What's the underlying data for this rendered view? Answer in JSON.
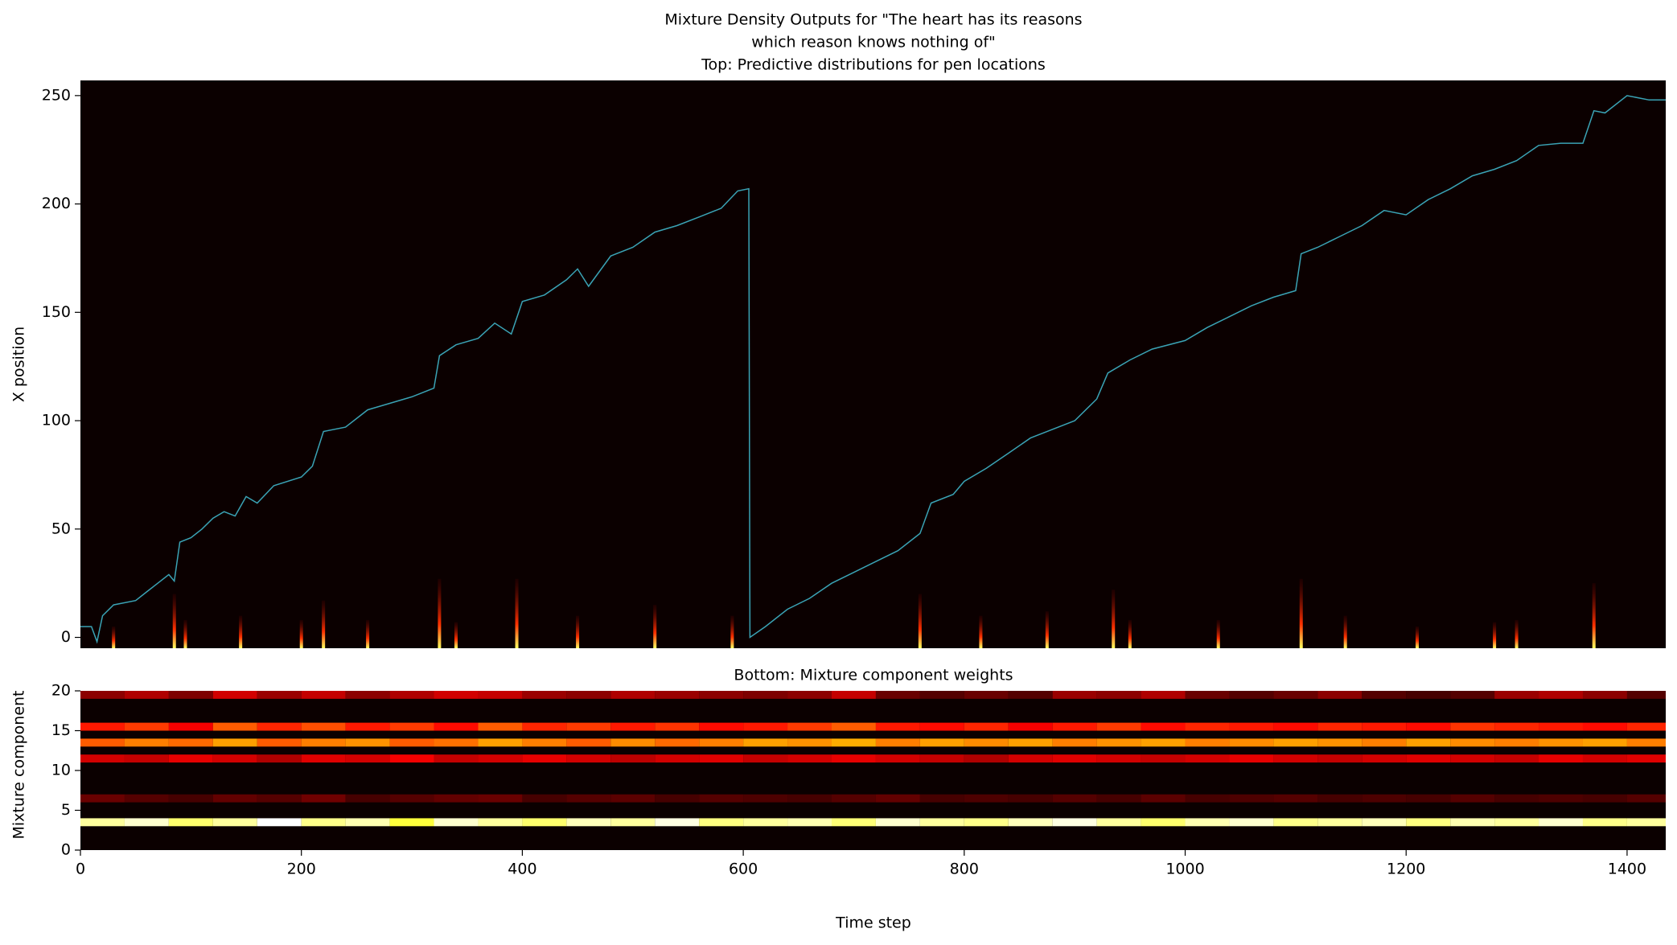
{
  "chart_data": [
    {
      "type": "heatmap",
      "title": [
        "Mixture Density Outputs for \"The heart has its reasons",
        "which reason knows nothing of\"",
        "Top: Predictive distributions for pen locations"
      ],
      "y_label": "X position",
      "xlim": [
        0,
        1435
      ],
      "ylim": [
        -5,
        257
      ],
      "yticks": [
        0,
        50,
        100,
        150,
        200,
        250
      ],
      "colormap": "hot",
      "line": {
        "color": "#3aa3b5",
        "x": [
          0,
          10,
          15,
          20,
          30,
          50,
          60,
          70,
          80,
          85,
          90,
          100,
          110,
          120,
          130,
          140,
          150,
          160,
          175,
          200,
          210,
          220,
          240,
          260,
          280,
          300,
          320,
          325,
          340,
          360,
          375,
          390,
          400,
          420,
          440,
          450,
          460,
          480,
          500,
          520,
          540,
          560,
          580,
          595,
          605,
          606,
          620,
          640,
          660,
          680,
          700,
          720,
          740,
          760,
          770,
          790,
          800,
          820,
          840,
          860,
          880,
          900,
          920,
          930,
          950,
          970,
          1000,
          1020,
          1040,
          1060,
          1080,
          1100,
          1105,
          1120,
          1140,
          1160,
          1180,
          1200,
          1220,
          1240,
          1260,
          1280,
          1300,
          1320,
          1340,
          1360,
          1370,
          1380,
          1400,
          1420,
          1435
        ],
        "values": [
          5,
          5,
          -2,
          10,
          15,
          17,
          21,
          25,
          29,
          26,
          44,
          46,
          50,
          55,
          58,
          56,
          65,
          62,
          70,
          74,
          79,
          95,
          97,
          105,
          108,
          111,
          115,
          130,
          135,
          138,
          145,
          140,
          155,
          158,
          165,
          170,
          162,
          176,
          180,
          187,
          190,
          194,
          198,
          206,
          207,
          0,
          5,
          13,
          18,
          25,
          30,
          35,
          40,
          48,
          62,
          66,
          72,
          78,
          85,
          92,
          96,
          100,
          110,
          122,
          128,
          133,
          137,
          143,
          148,
          153,
          157,
          160,
          177,
          180,
          185,
          190,
          197,
          195,
          202,
          207,
          213,
          216,
          220,
          227,
          228,
          228,
          243,
          242,
          250,
          248,
          248
        ]
      },
      "spikes": {
        "x": [
          30,
          85,
          95,
          145,
          200,
          220,
          260,
          325,
          340,
          395,
          450,
          520,
          590,
          760,
          815,
          875,
          935,
          950,
          1030,
          1105,
          1145,
          1210,
          1280,
          1300,
          1370
        ],
        "values": [
          5,
          20,
          8,
          10,
          8,
          17,
          8,
          27,
          7,
          27,
          10,
          15,
          10,
          20,
          10,
          12,
          22,
          8,
          8,
          27,
          10,
          5,
          7,
          8,
          25
        ]
      }
    },
    {
      "type": "heatmap",
      "title": "Bottom: Mixture component weights",
      "x_label": "Time step",
      "y_label": "Mixture component",
      "xlim": [
        0,
        1435
      ],
      "xticks": [
        0,
        200,
        400,
        600,
        800,
        1000,
        1200,
        1400
      ],
      "ylim": [
        0,
        20
      ],
      "yticks": [
        0,
        5,
        10,
        15,
        20
      ],
      "colormap": "hot",
      "x": [
        0,
        40,
        80,
        120,
        160,
        200,
        240,
        280,
        320,
        360,
        400,
        440,
        480,
        520,
        560,
        600,
        640,
        680,
        720,
        760,
        800,
        840,
        880,
        920,
        960,
        1000,
        1040,
        1080,
        1120,
        1160,
        1200,
        1240,
        1280,
        1320,
        1360,
        1400
      ],
      "rows": [
        {
          "component": 3,
          "values": [
            0.9,
            0.95,
            0.85,
            0.9,
            1,
            0.88,
            0.92,
            0.8,
            0.95,
            0.9,
            0.85,
            0.93,
            0.9,
            0.97,
            0.87,
            0.9,
            0.92,
            0.86,
            0.95,
            0.9,
            0.88,
            0.93,
            0.97,
            0.9,
            0.85,
            0.92,
            0.95,
            0.88,
            0.9,
            0.93,
            0.87,
            0.92,
            0.9,
            0.95,
            0.88,
            0.9
          ]
        },
        {
          "component": 6,
          "values": [
            0.15,
            0.12,
            0.1,
            0.14,
            0.12,
            0.16,
            0.1,
            0.12,
            0.14,
            0.15,
            0.1,
            0.12,
            0.13,
            0.1,
            0.12,
            0.11,
            0.1,
            0.12,
            0.14,
            0.1,
            0.11,
            0.1,
            0.12,
            0.1,
            0.13,
            0.1,
            0.11,
            0.12,
            0.1,
            0.11,
            0.1,
            0.12,
            0.1,
            0.11,
            0.1,
            0.12
          ]
        },
        {
          "component": 11,
          "values": [
            0.3,
            0.28,
            0.33,
            0.3,
            0.25,
            0.32,
            0.3,
            0.35,
            0.28,
            0.3,
            0.33,
            0.3,
            0.27,
            0.3,
            0.32,
            0.28,
            0.3,
            0.33,
            0.3,
            0.28,
            0.25,
            0.3,
            0.32,
            0.3,
            0.28,
            0.3,
            0.33,
            0.3,
            0.28,
            0.3,
            0.32,
            0.3,
            0.28,
            0.33,
            0.3,
            0.32
          ]
        },
        {
          "component": 13,
          "values": [
            0.5,
            0.55,
            0.52,
            0.6,
            0.5,
            0.55,
            0.58,
            0.5,
            0.53,
            0.6,
            0.55,
            0.5,
            0.57,
            0.52,
            0.55,
            0.6,
            0.58,
            0.62,
            0.55,
            0.6,
            0.57,
            0.6,
            0.55,
            0.58,
            0.6,
            0.55,
            0.57,
            0.6,
            0.58,
            0.55,
            0.6,
            0.57,
            0.55,
            0.58,
            0.6,
            0.55
          ]
        },
        {
          "component": 15,
          "values": [
            0.4,
            0.45,
            0.35,
            0.5,
            0.42,
            0.48,
            0.4,
            0.45,
            0.38,
            0.5,
            0.42,
            0.45,
            0.4,
            0.44,
            0.38,
            0.4,
            0.45,
            0.5,
            0.4,
            0.38,
            0.42,
            0.35,
            0.4,
            0.45,
            0.38,
            0.42,
            0.4,
            0.38,
            0.42,
            0.4,
            0.38,
            0.44,
            0.42,
            0.4,
            0.38,
            0.42
          ]
        },
        {
          "component": 19,
          "values": [
            0.2,
            0.25,
            0.18,
            0.3,
            0.22,
            0.28,
            0.2,
            0.25,
            0.3,
            0.28,
            0.22,
            0.2,
            0.25,
            0.22,
            0.2,
            0.18,
            0.2,
            0.28,
            0.15,
            0.12,
            0.15,
            0.12,
            0.22,
            0.2,
            0.25,
            0.15,
            0.12,
            0.15,
            0.2,
            0.12,
            0.1,
            0.12,
            0.22,
            0.25,
            0.2,
            0.12
          ]
        }
      ]
    }
  ]
}
